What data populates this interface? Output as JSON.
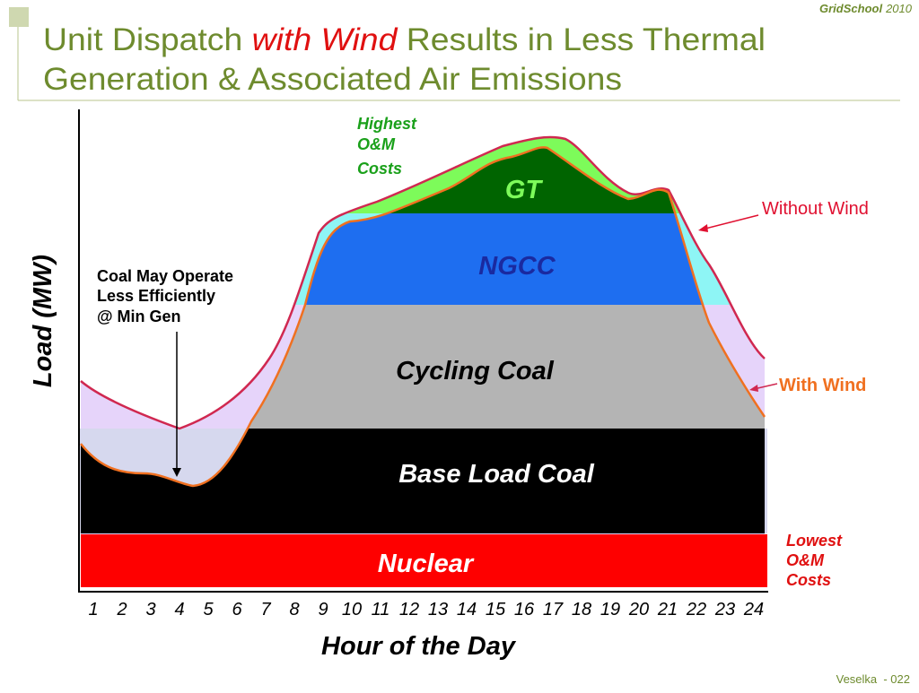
{
  "header": {
    "brand": "GridSchool",
    "year": "2010",
    "title_line1": [
      "Unit Dispatch ",
      "with Wind",
      " Results in Less Thermal"
    ],
    "title_line2": "Generation & Associated Air Emissions"
  },
  "chart": {
    "y_label": "Load (MW)",
    "x_label": "Hour of the Day",
    "hours": [
      1,
      2,
      3,
      4,
      5,
      6,
      7,
      8,
      9,
      10,
      11,
      12,
      13,
      14,
      15,
      16,
      17,
      18,
      19,
      20,
      21,
      22,
      23,
      24
    ],
    "layers": {
      "gt": "GT",
      "ngcc": "NGCC",
      "cycling": "Cycling Coal",
      "base": "Base Load Coal",
      "nuclear": "Nuclear"
    },
    "annotations": {
      "highest": [
        "Highest",
        "O&M",
        "Costs"
      ],
      "lowest": [
        "Lowest",
        "O&M",
        "Costs"
      ],
      "without_wind": "Without Wind",
      "with_wind": "With Wind",
      "min_gen": [
        "Coal May Operate",
        "Less Efficiently",
        "@ Min Gen"
      ]
    }
  },
  "footer": "Veselka  - 022"
}
